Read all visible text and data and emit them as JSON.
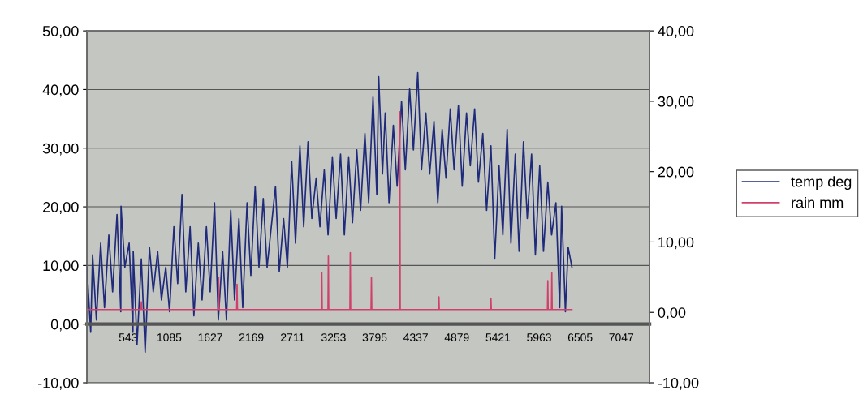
{
  "chart_data": {
    "type": "line",
    "xlim": [
      0,
      7420
    ],
    "xticks": [
      543,
      1085,
      1627,
      2169,
      2711,
      3253,
      3795,
      4337,
      4879,
      5421,
      5963,
      6505,
      7047
    ],
    "ylim": [
      -10,
      50
    ],
    "yticks": [
      {
        "value": -10,
        "label": "-10,00"
      },
      {
        "value": 0,
        "label": "0,00"
      },
      {
        "value": 10,
        "label": "10,00"
      },
      {
        "value": 20,
        "label": "20,00"
      },
      {
        "value": 30,
        "label": "30,00"
      },
      {
        "value": 40,
        "label": "40,00"
      },
      {
        "value": 50,
        "label": "50,00"
      }
    ],
    "y2lim": [
      -10,
      40
    ],
    "y2ticks": [
      {
        "value": -10,
        "label": "-10,00"
      },
      {
        "value": 0,
        "label": "0,00"
      },
      {
        "value": 10,
        "label": "10,00"
      },
      {
        "value": 20,
        "label": "20,00"
      },
      {
        "value": 30,
        "label": "30,00"
      },
      {
        "value": 40,
        "label": "40,00"
      }
    ],
    "grid": "y",
    "legend": "right",
    "marker": "none",
    "line_style": "solid",
    "series": [
      {
        "name": "temp deg",
        "color": "#1f2a7a",
        "x": [
          0,
          50,
          75,
          125,
          182,
          232,
          289,
          339,
          397,
          447,
          450,
          500,
          557,
          607,
          611,
          661,
          718,
          768,
          825,
          875,
          933,
          983,
          1040,
          1090,
          1147,
          1197,
          1254,
          1304,
          1361,
          1411,
          1469,
          1519,
          1576,
          1626,
          1683,
          1733,
          1790,
          1840,
          1897,
          1947,
          2005,
          2055,
          2112,
          2162,
          2219,
          2269,
          2326,
          2376,
          2487,
          2537,
          2594,
          2644,
          2701,
          2751,
          2809,
          2859,
          2916,
          2966,
          3023,
          3073,
          3130,
          3180,
          3237,
          3287,
          3345,
          3395,
          3452,
          3502,
          3559,
          3609,
          3666,
          3716,
          3773,
          3823,
          3848,
          3898,
          3934,
          3984,
          4041,
          4091,
          4149,
          4199,
          4256,
          4306,
          4363,
          4413,
          4470,
          4520,
          4577,
          4627,
          4685,
          4735,
          4792,
          4842,
          4899,
          4949,
          5006,
          5056,
          5113,
          5163,
          5221,
          5271,
          5328,
          5378,
          5435,
          5485,
          5542,
          5592,
          5649,
          5699,
          5757,
          5807,
          5864,
          5914,
          5971,
          6021,
          6078,
          6128,
          6185,
          6235,
          6260,
          6310,
          6346,
          6396
        ],
        "values": [
          9.7,
          -1.4,
          11.8,
          0.7,
          13.8,
          2.8,
          15.2,
          5.5,
          18.7,
          2.1,
          20.1,
          9.7,
          13.8,
          -1.4,
          12.4,
          -3.5,
          11.1,
          -4.8,
          13.1,
          5.5,
          12.4,
          4.1,
          9.7,
          2.1,
          16.6,
          6.9,
          22.1,
          5.5,
          16.6,
          1.4,
          13.8,
          4.1,
          16.6,
          5.5,
          20.7,
          0.7,
          12.4,
          0.7,
          19.4,
          4.1,
          18.0,
          2.8,
          20.7,
          8.3,
          23.5,
          9.7,
          21.4,
          9.7,
          23.5,
          9.0,
          18.0,
          9.7,
          27.7,
          13.8,
          30.4,
          16.6,
          31.1,
          18.0,
          24.9,
          16.6,
          26.3,
          15.2,
          28.4,
          18.0,
          29.0,
          15.2,
          28.4,
          17.3,
          29.7,
          19.4,
          32.5,
          20.7,
          38.7,
          22.1,
          42.2,
          25.6,
          36.0,
          20.7,
          33.9,
          23.5,
          38.0,
          26.3,
          40.1,
          29.7,
          42.9,
          26.3,
          36.0,
          25.6,
          34.6,
          20.7,
          33.2,
          24.9,
          36.7,
          26.3,
          37.3,
          23.5,
          36.0,
          27.0,
          36.7,
          24.2,
          32.5,
          19.4,
          30.4,
          11.1,
          27.0,
          15.2,
          33.2,
          13.8,
          29.0,
          12.4,
          31.1,
          18.0,
          29.0,
          11.8,
          27.0,
          12.4,
          24.2,
          15.2,
          20.7,
          2.8,
          20.1,
          2.1,
          13.1,
          9.7
        ]
      },
      {
        "name": "rain mm",
        "color": "#d0406a",
        "axis": "y2",
        "x": [
          0,
          713,
          718,
          723,
          1732,
          1737,
          1742,
          1975,
          1980,
          1985,
          3093,
          3098,
          3103,
          3179,
          3184,
          3189,
          3468,
          3473,
          3478,
          3747,
          3752,
          3757,
          4122,
          4127,
          4132,
          4637,
          4642,
          4647,
          5323,
          5328,
          5333,
          6073,
          6078,
          6083,
          6126,
          6131,
          6136,
          6396
        ],
        "values": [
          0.4,
          0.4,
          1.5,
          0.4,
          0.4,
          5.0,
          0.4,
          0.4,
          4.0,
          0.4,
          0.4,
          5.6,
          0.4,
          0.4,
          8.0,
          0.4,
          0.4,
          8.5,
          0.4,
          0.4,
          5.0,
          0.4,
          0.4,
          28.5,
          0.4,
          0.4,
          2.2,
          0.4,
          0.4,
          2.0,
          0.4,
          0.4,
          4.5,
          0.4,
          0.4,
          5.6,
          0.4,
          0.4
        ]
      }
    ]
  }
}
